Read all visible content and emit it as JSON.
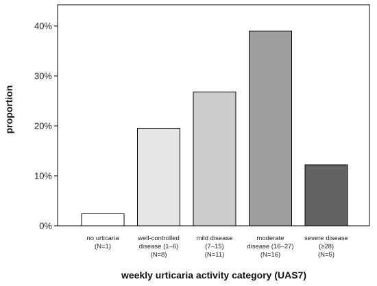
{
  "chart_data": {
    "type": "bar",
    "title": "",
    "xlabel": "weekly urticaria activity category (UAS7)",
    "ylabel": "proportion",
    "ylim": [
      0,
      45
    ],
    "yticks": [
      0,
      10,
      20,
      30,
      40
    ],
    "ytick_labels": [
      "0%",
      "10%",
      "20%",
      "30%",
      "40%"
    ],
    "grid": false,
    "categories": [
      [
        "no urticaria",
        "(N=1)"
      ],
      [
        "well-controlled",
        "disease (1–6)",
        "(N=8)"
      ],
      [
        "mild disease",
        "(7–15)",
        "(N=11)"
      ],
      [
        "moderate",
        "disease (16–27)",
        "(N=16)"
      ],
      [
        "severe disease",
        "(≥28)",
        "(N=5)"
      ]
    ],
    "values": [
      2.4,
      19.5,
      26.8,
      39.0,
      12.2
    ],
    "colors": {
      "bars": [
        "#ffffff",
        "#e6e6e6",
        "#cccccc",
        "#9e9e9e",
        "#636363"
      ],
      "stroke": "#000000",
      "background": "#ffffff"
    }
  }
}
